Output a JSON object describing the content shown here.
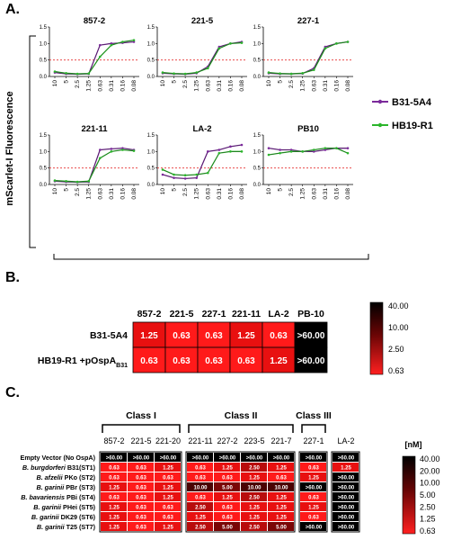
{
  "panels": {
    "a": {
      "letter": "A."
    },
    "b": {
      "letter": "B."
    },
    "c": {
      "letter": "C."
    }
  },
  "chart_data": [
    {
      "type": "line",
      "panel": "A",
      "ylabel": "mScarlet-I Fluorescence",
      "x_ticks": [
        "10",
        "5",
        "2.5",
        "1.25",
        "0.63",
        "0.31",
        "0.16",
        "0.08"
      ],
      "ylim": [
        0,
        1.5
      ],
      "y_ticks": [
        "0.0",
        "0.5",
        "1.0",
        "1.5"
      ],
      "threshold": 0.5,
      "legend": [
        {
          "name": "B31-5A4",
          "color": "#7b2a9b"
        },
        {
          "name": "HB19-R1",
          "color": "#2bb52b"
        }
      ],
      "subplots": [
        {
          "title": "857-2",
          "series": [
            {
              "name": "B31-5A4",
              "values": [
                0.12,
                0.08,
                0.07,
                0.08,
                0.95,
                1.0,
                1.02,
                1.05
              ]
            },
            {
              "name": "HB19-R1",
              "values": [
                0.15,
                0.1,
                0.08,
                0.09,
                0.6,
                0.95,
                1.05,
                1.1
              ]
            }
          ]
        },
        {
          "title": "221-5",
          "series": [
            {
              "name": "B31-5A4",
              "values": [
                0.1,
                0.08,
                0.07,
                0.1,
                0.3,
                0.9,
                1.0,
                1.05
              ]
            },
            {
              "name": "HB19-R1",
              "values": [
                0.12,
                0.09,
                0.08,
                0.12,
                0.25,
                0.85,
                1.0,
                1.02
              ]
            }
          ]
        },
        {
          "title": "227-1",
          "series": [
            {
              "name": "B31-5A4",
              "values": [
                0.1,
                0.08,
                0.08,
                0.09,
                0.25,
                0.9,
                1.0,
                1.05
              ]
            },
            {
              "name": "HB19-R1",
              "values": [
                0.12,
                0.09,
                0.08,
                0.1,
                0.2,
                0.85,
                1.0,
                1.05
              ]
            }
          ]
        },
        {
          "title": "221-11",
          "series": [
            {
              "name": "B31-5A4",
              "values": [
                0.1,
                0.08,
                0.07,
                0.08,
                1.05,
                1.08,
                1.1,
                1.05
              ]
            },
            {
              "name": "HB19-R1",
              "values": [
                0.12,
                0.1,
                0.08,
                0.1,
                0.8,
                1.0,
                1.05,
                1.02
              ]
            }
          ]
        },
        {
          "title": "LA-2",
          "series": [
            {
              "name": "B31-5A4",
              "values": [
                0.3,
                0.2,
                0.18,
                0.2,
                1.0,
                1.05,
                1.15,
                1.2
              ]
            },
            {
              "name": "HB19-R1",
              "values": [
                0.45,
                0.3,
                0.28,
                0.3,
                0.35,
                0.95,
                1.0,
                1.0
              ]
            }
          ]
        },
        {
          "title": "PB10",
          "series": [
            {
              "name": "B31-5A4",
              "values": [
                1.1,
                1.05,
                1.05,
                1.0,
                1.0,
                1.05,
                1.1,
                1.1
              ]
            },
            {
              "name": "HB19-R1",
              "values": [
                0.9,
                0.95,
                1.0,
                1.0,
                1.05,
                1.1,
                1.1,
                0.95
              ]
            }
          ]
        }
      ]
    },
    {
      "type": "heatmap",
      "panel": "B",
      "columns": [
        "857-2",
        "221-5",
        "227-1",
        "221-11",
        "LA-2",
        "PB-10"
      ],
      "rows": [
        {
          "label": "B31-5A4",
          "values": [
            "1.25",
            "0.63",
            "0.63",
            "1.25",
            "0.63",
            ">60.00"
          ]
        },
        {
          "label": "HB19-R1 +pOspA",
          "label_sub": "B31",
          "values": [
            "0.63",
            "0.63",
            "0.63",
            "0.63",
            "1.25",
            ">60.00"
          ]
        }
      ],
      "colorbar": [
        "40.00",
        "10.00",
        "2.50",
        "0.63"
      ]
    },
    {
      "type": "heatmap",
      "panel": "C",
      "unit": "[nM]",
      "groups": [
        {
          "label": "Class I",
          "columns": [
            "857-2",
            "221-5",
            "221-20"
          ]
        },
        {
          "label": "Class II",
          "columns": [
            "221-11",
            "227-2",
            "223-5",
            "221-7"
          ]
        },
        {
          "label": "Class III",
          "columns": [
            "227-1"
          ]
        },
        {
          "label": "",
          "columns": [
            "LA-2"
          ]
        }
      ],
      "rows": [
        {
          "label": "Empty Vector (No OspA)",
          "values": [
            ">60.00",
            ">60.00",
            ">60.00",
            ">60.00",
            ">60.00",
            ">60.00",
            ">60.00",
            ">60.00",
            ">60.00"
          ]
        },
        {
          "species": "B. burgdorferi",
          "strain": "B31(ST1)",
          "values": [
            "0.63",
            "0.63",
            "1.25",
            "0.63",
            "1.25",
            "2.50",
            "1.25",
            "0.63",
            "1.25"
          ]
        },
        {
          "species": "B. afzelii",
          "strain": "PKo (ST2)",
          "values": [
            "0.63",
            "0.63",
            "0.63",
            "0.63",
            "0.63",
            "1.25",
            "0.63",
            "1.25",
            ">60.00"
          ]
        },
        {
          "species": "B. garinii",
          "strain": "PBr (ST3)",
          "values": [
            "1.25",
            "0.63",
            "1.25",
            "10.00",
            "5.00",
            "10.00",
            "10.00",
            ">60.00",
            ">60.00"
          ]
        },
        {
          "species": "B. bavariensis",
          "strain": "PBi (ST4)",
          "values": [
            "0.63",
            "0.63",
            "1.25",
            "0.63",
            "1.25",
            "2.50",
            "1.25",
            "0.63",
            ">60.00"
          ]
        },
        {
          "species": "B. garinii",
          "strain": "PHei (ST5)",
          "values": [
            "1.25",
            "0.63",
            "0.63",
            "2.50",
            "0.63",
            "1.25",
            "1.25",
            "1.25",
            ">60.00"
          ]
        },
        {
          "species": "B. garinii",
          "strain": "DK29 (ST6)",
          "values": [
            "1.25",
            "0.63",
            "0.63",
            "1.25",
            "0.63",
            "1.25",
            "1.25",
            "0.63",
            ">60.00"
          ]
        },
        {
          "species": "B. garinii",
          "strain": "T25 (ST7)",
          "values": [
            "1.25",
            "0.63",
            "1.25",
            "2.50",
            "5.00",
            "2.50",
            "5.00",
            ">60.00",
            ">60.00"
          ]
        }
      ],
      "colorbar": [
        "40.00",
        "20.00",
        "10.00",
        "5.00",
        "2.50",
        "1.25",
        "0.63"
      ]
    }
  ]
}
